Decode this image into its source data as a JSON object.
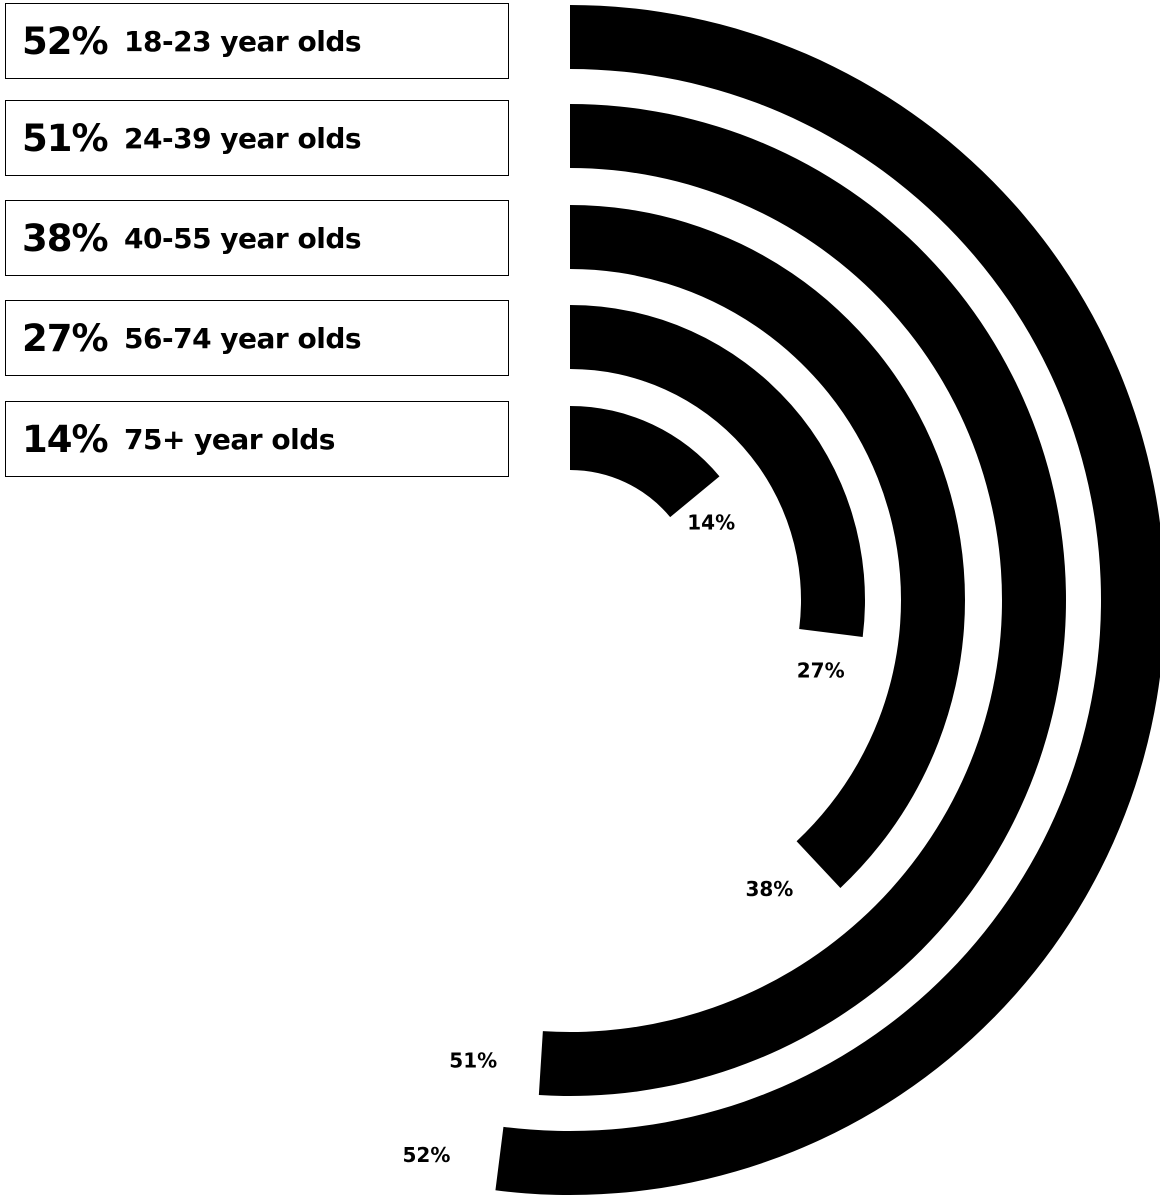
{
  "chart_data": {
    "type": "radial-bar",
    "unit": "%",
    "max_value": 100,
    "color": "#000000",
    "series": [
      {
        "label": "18-23 year olds",
        "value": 52,
        "display": "52%"
      },
      {
        "label": "24-39 year olds",
        "value": 51,
        "display": "51%"
      },
      {
        "label": "40-55 year olds",
        "value": 38,
        "display": "38%"
      },
      {
        "label": "56-74 year olds",
        "value": 27,
        "display": "27%"
      },
      {
        "label": "75+ year olds",
        "value": 14,
        "display": "14%"
      }
    ]
  }
}
